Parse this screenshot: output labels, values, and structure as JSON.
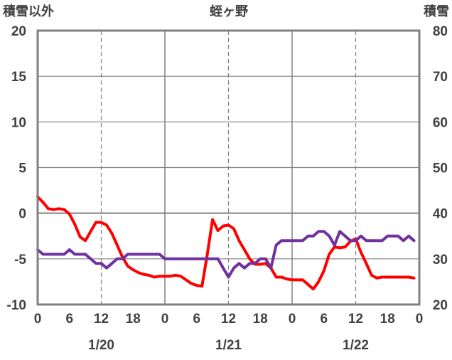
{
  "chart_data": {
    "type": "line",
    "title": "蛭ヶ野",
    "y_left_label": "積雪以外",
    "y_right_label": "積雪",
    "y_left_lim": [
      -10,
      20
    ],
    "y_left_ticks": [
      "20",
      "15",
      "10",
      "5",
      "0",
      "-5",
      "-10"
    ],
    "y_right_lim": [
      20,
      80
    ],
    "y_right_ticks": [
      "80",
      "70",
      "60",
      "50",
      "40",
      "30",
      "20"
    ],
    "x_lim_hours": [
      0,
      72
    ],
    "x_ticks": [
      {
        "hour": 0,
        "label": "0"
      },
      {
        "hour": 6,
        "label": "6"
      },
      {
        "hour": 12,
        "label": "12"
      },
      {
        "hour": 18,
        "label": "18"
      },
      {
        "hour": 24,
        "label": "0"
      },
      {
        "hour": 30,
        "label": "6"
      },
      {
        "hour": 36,
        "label": "12"
      },
      {
        "hour": 42,
        "label": "18"
      },
      {
        "hour": 48,
        "label": "0"
      },
      {
        "hour": 54,
        "label": "6"
      },
      {
        "hour": 60,
        "label": "12"
      },
      {
        "hour": 66,
        "label": "18"
      },
      {
        "hour": 72,
        "label": "0"
      }
    ],
    "dates": [
      {
        "hour": 12,
        "label": "1/20"
      },
      {
        "hour": 36,
        "label": "1/21"
      },
      {
        "hour": 60,
        "label": "1/22"
      }
    ],
    "grid": true,
    "series": [
      {
        "color": "#ff0000",
        "axis": "left",
        "x": [
          0,
          1,
          2,
          3,
          4,
          5,
          6,
          7,
          8,
          9,
          10,
          11,
          12,
          13,
          14,
          15,
          16,
          17,
          18,
          19,
          20,
          21,
          22,
          23,
          24,
          25,
          26,
          27,
          28,
          29,
          30,
          31,
          32,
          33,
          34,
          35,
          36,
          37,
          38,
          39,
          40,
          41,
          42,
          43,
          44,
          45,
          46,
          47,
          48,
          49,
          50,
          51,
          52,
          53,
          54,
          55,
          56,
          57,
          58,
          59,
          60,
          61,
          62,
          63,
          64,
          65,
          66,
          67,
          68,
          69,
          70,
          71
        ],
        "values": [
          1.8,
          1.2,
          0.5,
          0.4,
          0.5,
          0.4,
          -0.1,
          -1.2,
          -2.6,
          -3.0,
          -2.0,
          -1.0,
          -1.0,
          -1.3,
          -2.2,
          -3.5,
          -4.8,
          -5.8,
          -6.2,
          -6.5,
          -6.7,
          -6.8,
          -7.0,
          -6.9,
          -6.9,
          -6.9,
          -6.8,
          -6.9,
          -7.3,
          -7.7,
          -7.9,
          -8.0,
          -4.5,
          -0.7,
          -1.9,
          -1.4,
          -1.3,
          -1.7,
          -3.0,
          -4.0,
          -5.0,
          -5.6,
          -5.6,
          -5.5,
          -6.0,
          -7.0,
          -7.0,
          -7.2,
          -7.3,
          -7.3,
          -7.3,
          -7.8,
          -8.3,
          -7.5,
          -6.3,
          -4.5,
          -3.7,
          -3.8,
          -3.7,
          -3.1,
          -2.8,
          -4.3,
          -5.5,
          -6.8,
          -7.1,
          -7.0,
          -7.0,
          -7.0,
          -7.0,
          -7.0,
          -7.0,
          -7.1
        ]
      },
      {
        "color": "#7030a0",
        "axis": "left",
        "x": [
          0,
          1,
          2,
          3,
          4,
          5,
          6,
          7,
          8,
          9,
          10,
          11,
          12,
          13,
          14,
          15,
          16,
          17,
          18,
          19,
          20,
          21,
          22,
          23,
          24,
          25,
          26,
          27,
          28,
          29,
          30,
          31,
          32,
          33,
          34,
          35,
          36,
          37,
          38,
          39,
          40,
          41,
          42,
          43,
          44,
          45,
          46,
          47,
          48,
          49,
          50,
          51,
          52,
          53,
          54,
          55,
          56,
          57,
          58,
          59,
          60,
          61,
          62,
          63,
          64,
          65,
          66,
          67,
          68,
          69,
          70,
          71
        ],
        "values": [
          -4.0,
          -4.5,
          -4.5,
          -4.5,
          -4.5,
          -4.5,
          -4.0,
          -4.5,
          -4.5,
          -4.5,
          -5.0,
          -5.5,
          -5.5,
          -6.0,
          -5.5,
          -5.0,
          -5.0,
          -4.5,
          -4.5,
          -4.5,
          -4.5,
          -4.5,
          -4.5,
          -4.5,
          -5.0,
          -5.0,
          -5.0,
          -5.0,
          -5.0,
          -5.0,
          -5.0,
          -5.0,
          -5.0,
          -5.0,
          -5.0,
          -6.0,
          -7.0,
          -6.0,
          -5.5,
          -6.0,
          -5.5,
          -5.5,
          -5.0,
          -5.0,
          -6.0,
          -3.5,
          -3.0,
          -3.0,
          -3.0,
          -3.0,
          -3.0,
          -2.5,
          -2.5,
          -2.0,
          -2.0,
          -2.5,
          -3.5,
          -2.0,
          -2.5,
          -3.0,
          -3.0,
          -2.5,
          -3.0,
          -3.0,
          -3.0,
          -3.0,
          -2.5,
          -2.5,
          -2.5,
          -3.0,
          -2.5,
          -3.0
        ]
      }
    ]
  }
}
